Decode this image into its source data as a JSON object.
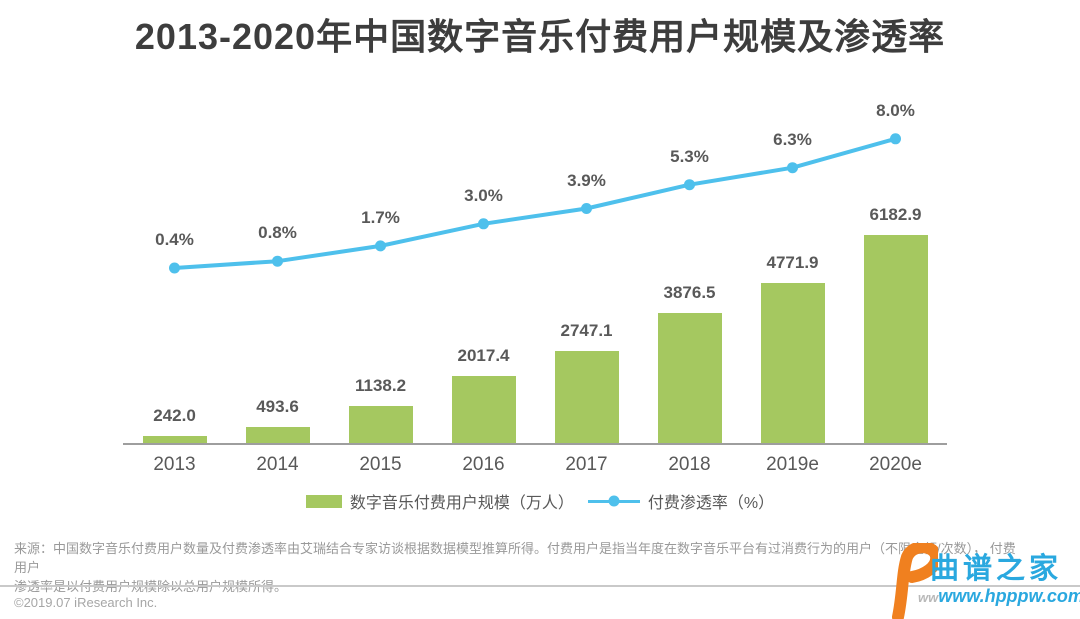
{
  "title": "2013-2020年中国数字音乐付费用户规模及渗透率",
  "colors": {
    "title": "#3D3D3D",
    "bar": "#A5C860",
    "line": "#4EC0EC",
    "label": "#595959",
    "axis": "#9E9E9E",
    "source": "#999999",
    "divider": "#C9C9C9",
    "copyright": "#A6A6A6",
    "wm_blue": "#2AA8DF",
    "wm_orange": "#F0801F"
  },
  "chart_data": {
    "type": "combo",
    "title": "2013-2020年中国数字音乐付费用户规模及渗透率",
    "categories": [
      "2013",
      "2014",
      "2015",
      "2016",
      "2017",
      "2018",
      "2019e",
      "2020e"
    ],
    "series": [
      {
        "name": "数字音乐付费用户规模（万人）",
        "type": "bar",
        "values": [
          242.0,
          493.6,
          1138.2,
          2017.4,
          2747.1,
          3876.5,
          4771.9,
          6182.9
        ],
        "labels": [
          "242.0",
          "493.6",
          "1138.2",
          "2017.4",
          "2747.1",
          "3876.5",
          "4771.9",
          "6182.9"
        ]
      },
      {
        "name": "付费渗透率（%）",
        "type": "line",
        "values": [
          0.4,
          0.8,
          1.7,
          3.0,
          3.9,
          5.3,
          6.3,
          8.0
        ],
        "labels": [
          "0.4%",
          "0.8%",
          "1.7%",
          "3.0%",
          "3.9%",
          "5.3%",
          "6.3%",
          "8.0%"
        ]
      }
    ],
    "xlabel": "",
    "ylabel": "",
    "grid": false,
    "data_labels": true,
    "legend_position": "bottom"
  },
  "legend": [
    {
      "label": "数字音乐付费用户规模（万人）",
      "swatch": "bar"
    },
    {
      "label": "付费渗透率（%）",
      "swatch": "line"
    }
  ],
  "source": {
    "line1": "来源：中国数字音乐付费用户数量及付费渗透率由艾瑞结合专家访谈根据数据模型推算所得。付费用户是指当年度在数字音乐平台有过消费行为的用户（不限金额/次数）， 付费用户",
    "line2": "渗透率是以付费用户规模除以总用户规模所得。"
  },
  "footer": {
    "copyright": "©2019.07 iResearch Inc.",
    "watermark_name": "曲谱之家",
    "watermark_url": "www.hpppw.com",
    "watermark_url_prefix": "ww"
  }
}
